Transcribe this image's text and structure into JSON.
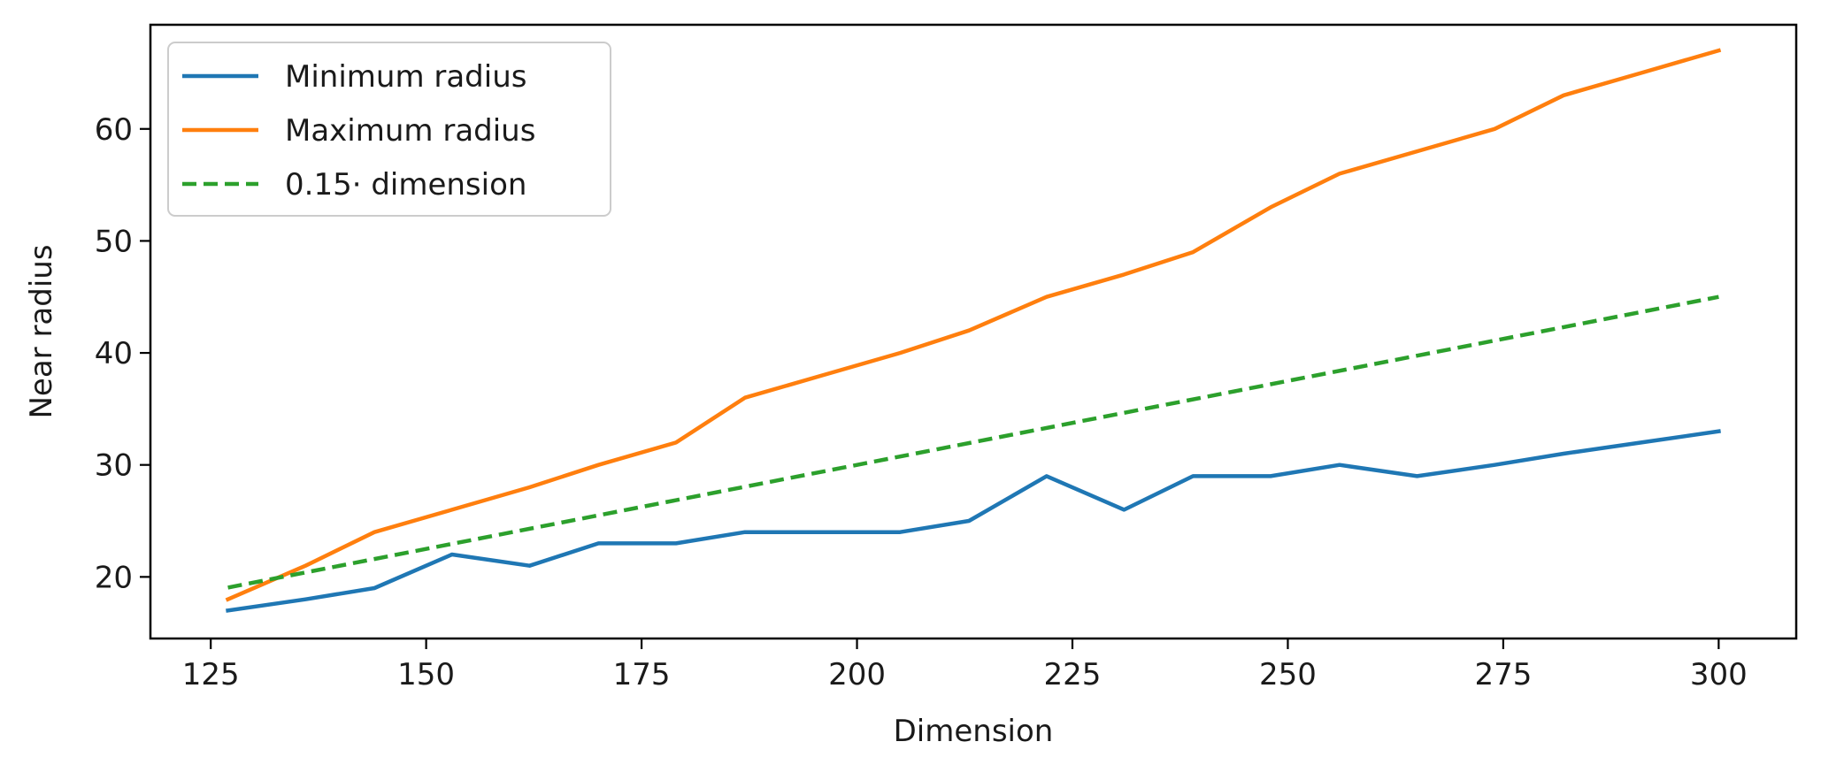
{
  "chart_data": {
    "type": "line",
    "title": "",
    "xlabel": "Dimension",
    "ylabel": "Near radius",
    "xlim": [
      118,
      309
    ],
    "ylim": [
      14.5,
      69.3
    ],
    "xticks": [
      125,
      150,
      175,
      200,
      225,
      250,
      275,
      300
    ],
    "yticks": [
      20,
      30,
      40,
      50,
      60
    ],
    "grid": false,
    "legend_position": "upper-left",
    "series": [
      {
        "name": "Minimum radius",
        "color": "#1f77b4",
        "style": "solid",
        "x": [
          127,
          136,
          144,
          153,
          162,
          170,
          179,
          187,
          196,
          205,
          213,
          222,
          231,
          239,
          248,
          256,
          265,
          274,
          282,
          291,
          300
        ],
        "y": [
          17,
          18,
          19,
          22,
          21,
          23,
          23,
          24,
          24,
          24,
          25,
          29,
          26,
          29,
          29,
          30,
          29,
          30,
          31,
          32,
          33
        ]
      },
      {
        "name": "Maximum radius",
        "color": "#ff7f0e",
        "style": "solid",
        "x": [
          127,
          136,
          144,
          153,
          162,
          170,
          179,
          187,
          196,
          205,
          213,
          222,
          231,
          239,
          248,
          256,
          265,
          274,
          282,
          291,
          300
        ],
        "y": [
          18,
          21,
          24,
          26,
          28,
          30,
          32,
          36,
          38,
          40,
          42,
          45,
          47,
          49,
          53,
          56,
          58,
          60,
          63,
          65,
          67
        ]
      },
      {
        "name": "0.15· dimension",
        "color": "#2ca02c",
        "style": "dashed",
        "x": [
          127,
          300
        ],
        "y": [
          19.05,
          45
        ]
      }
    ]
  }
}
